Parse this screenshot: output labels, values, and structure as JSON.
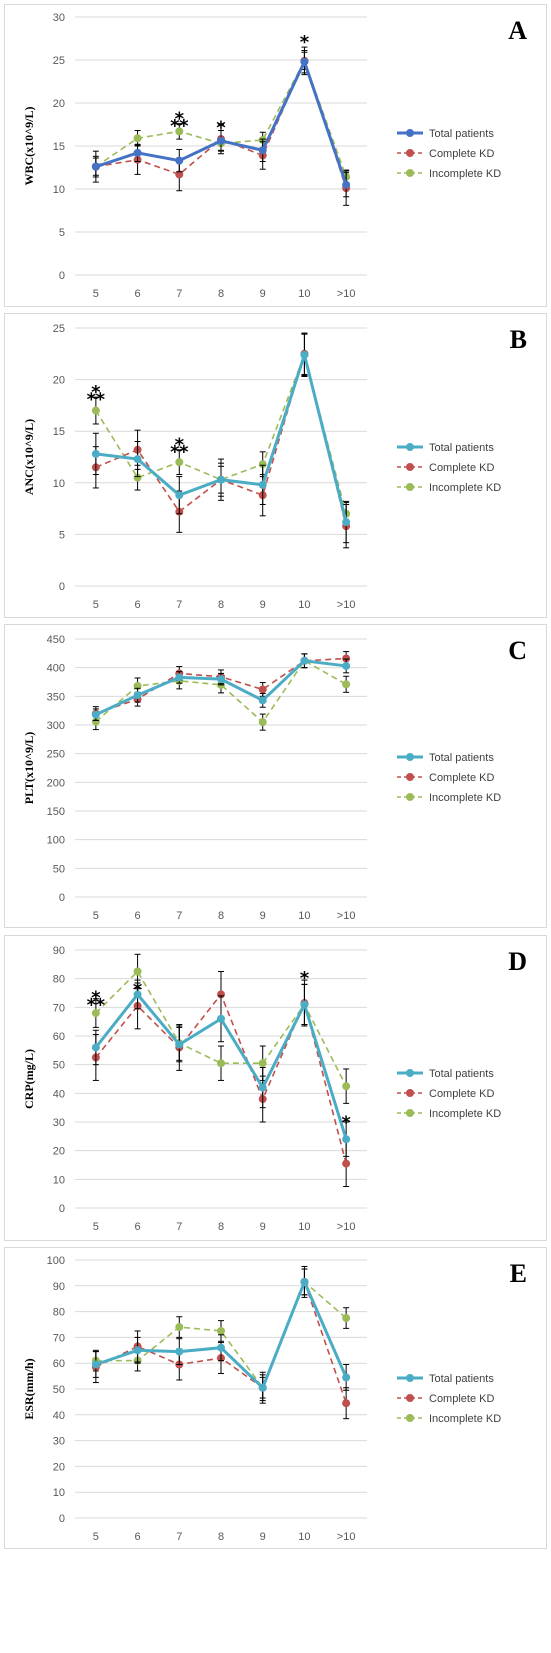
{
  "colors": {
    "total_A": "#4472C4",
    "total": "#4BACC6",
    "complete": "#C0504D",
    "incomplete": "#9BBB59",
    "grid": "#d9d9d9",
    "errorbar": "#000000"
  },
  "legend": [
    "Total patients",
    "Complete KD",
    "Incomplete KD"
  ],
  "chart_data": [
    {
      "panel": "A",
      "type": "line",
      "ylabel": "WBC(x10^9/L)",
      "categories": [
        "5",
        "6",
        "7",
        "8",
        "9",
        "10",
        ">10"
      ],
      "ylim": [
        0,
        30
      ],
      "yticks": [
        0,
        5,
        10,
        15,
        20,
        25,
        30
      ],
      "series": [
        {
          "name": "Total patients",
          "values": [
            12.6,
            14.2,
            13.3,
            15.6,
            14.5,
            24.8,
            10.5
          ],
          "err": [
            1.2,
            1.0,
            1.3,
            1.2,
            1.3,
            1.3,
            1.4
          ]
        },
        {
          "name": "Complete KD",
          "values": [
            12.6,
            13.4,
            11.7,
            15.8,
            13.9,
            24.9,
            10.1
          ],
          "err": [
            1.8,
            1.7,
            1.9,
            1.7,
            1.6,
            1.6,
            2.0
          ]
        },
        {
          "name": "Incomplete KD",
          "values": [
            12.6,
            15.9,
            16.7,
            15.3,
            15.7,
            24.9,
            11.4
          ],
          "err": [
            1.0,
            0.9,
            0.9,
            0.8,
            0.9,
            1.0,
            0.8
          ]
        }
      ],
      "annotations": [
        {
          "cat": 2,
          "value": 18.2,
          "text": "⁂"
        },
        {
          "cat": 3,
          "value": 17.4,
          "text": "*"
        },
        {
          "cat": 5,
          "value": 27.3,
          "text": "*"
        }
      ]
    },
    {
      "panel": "B",
      "type": "line",
      "ylabel": "ANC(x10^9/L)",
      "categories": [
        "5",
        "6",
        "7",
        "8",
        "9",
        "10",
        ">10"
      ],
      "ylim": [
        0,
        25
      ],
      "yticks": [
        0,
        5,
        10,
        15,
        20,
        25
      ],
      "series": [
        {
          "name": "Total patients",
          "values": [
            12.8,
            12.3,
            8.8,
            10.3,
            9.8,
            22.4,
            6.2
          ],
          "err": [
            2.0,
            1.7,
            1.8,
            1.6,
            1.9,
            2.1,
            2.0
          ]
        },
        {
          "name": "Complete KD",
          "values": [
            11.5,
            13.2,
            7.2,
            10.3,
            8.8,
            22.5,
            5.8
          ],
          "err": [
            2.0,
            1.9,
            2.0,
            2.0,
            2.0,
            2.0,
            2.1
          ]
        },
        {
          "name": "Incomplete KD",
          "values": [
            17.0,
            10.5,
            12.0,
            10.3,
            11.8,
            22.4,
            7.0
          ],
          "err": [
            1.3,
            1.2,
            1.2,
            1.3,
            1.2,
            2.0,
            1.1
          ]
        }
      ],
      "annotations": [
        {
          "cat": 0,
          "value": 18.8,
          "text": "⁂"
        },
        {
          "cat": 2,
          "value": 13.7,
          "text": "⁂"
        }
      ]
    },
    {
      "panel": "C",
      "type": "line",
      "ylabel": "PLT(x10^9/L)",
      "categories": [
        "5",
        "6",
        "7",
        "8",
        "9",
        "10",
        ">10"
      ],
      "ylim": [
        0,
        450
      ],
      "yticks": [
        0,
        50,
        100,
        150,
        200,
        250,
        300,
        350,
        400,
        450
      ],
      "series": [
        {
          "name": "Total patients",
          "values": [
            318,
            352,
            383,
            380,
            343,
            412,
            403
          ],
          "err": [
            10,
            12,
            10,
            10,
            12,
            12,
            12
          ]
        },
        {
          "name": "Complete KD",
          "values": [
            320,
            345,
            390,
            384,
            362,
            412,
            416
          ],
          "err": [
            12,
            12,
            12,
            12,
            12,
            12,
            12
          ]
        },
        {
          "name": "Incomplete KD",
          "values": [
            306,
            368,
            377,
            370,
            305,
            412,
            371
          ],
          "err": [
            14,
            14,
            14,
            14,
            14,
            12,
            14
          ]
        }
      ],
      "annotations": []
    },
    {
      "panel": "D",
      "type": "line",
      "ylabel": "CRP(mg/L)",
      "categories": [
        "5",
        "6",
        "7",
        "8",
        "9",
        "10",
        ">10"
      ],
      "ylim": [
        0,
        90
      ],
      "yticks": [
        0,
        10,
        20,
        30,
        40,
        50,
        60,
        70,
        80,
        90
      ],
      "series": [
        {
          "name": "Total patients",
          "values": [
            56,
            74.5,
            57,
            66,
            42,
            71,
            24
          ],
          "err": [
            6,
            5,
            6,
            8,
            7,
            7,
            6
          ]
        },
        {
          "name": "Complete KD",
          "values": [
            52.5,
            70.5,
            56,
            74.5,
            38,
            71.5,
            15.5
          ],
          "err": [
            8,
            8,
            8,
            8,
            8,
            8,
            8
          ]
        },
        {
          "name": "Incomplete KD",
          "values": [
            68,
            82.5,
            57.5,
            50.5,
            50.5,
            71,
            42.5
          ],
          "err": [
            5,
            6,
            6,
            6,
            6,
            7,
            6
          ]
        }
      ],
      "annotations": [
        {
          "cat": 0,
          "value": 73.5,
          "text": "⁂"
        },
        {
          "cat": 1,
          "value": 77,
          "text": "*"
        },
        {
          "cat": 5,
          "value": 81,
          "text": "*"
        },
        {
          "cat": 6,
          "value": 30.5,
          "text": "*"
        }
      ]
    },
    {
      "panel": "E",
      "type": "line",
      "ylabel": "ESR(mm/h)",
      "categories": [
        "5",
        "6",
        "7",
        "8",
        "9",
        "10",
        ">10"
      ],
      "ylim": [
        0,
        100
      ],
      "yticks": [
        0,
        10,
        20,
        30,
        40,
        50,
        60,
        70,
        80,
        90,
        100
      ],
      "series": [
        {
          "name": "Total patients",
          "values": [
            59.5,
            65,
            64.5,
            66,
            50.5,
            91.5,
            54.5
          ],
          "err": [
            5,
            5,
            5,
            5,
            5,
            5,
            5
          ]
        },
        {
          "name": "Complete KD",
          "values": [
            58.5,
            66.5,
            59.5,
            62,
            50.5,
            91.5,
            44.5
          ],
          "err": [
            6,
            6,
            6,
            6,
            6,
            6,
            6
          ]
        },
        {
          "name": "Incomplete KD",
          "values": [
            61,
            61,
            74,
            72.5,
            50.5,
            91.5,
            77.5
          ],
          "err": [
            4,
            4,
            4,
            4,
            4,
            5,
            4
          ]
        }
      ],
      "annotations": []
    }
  ]
}
